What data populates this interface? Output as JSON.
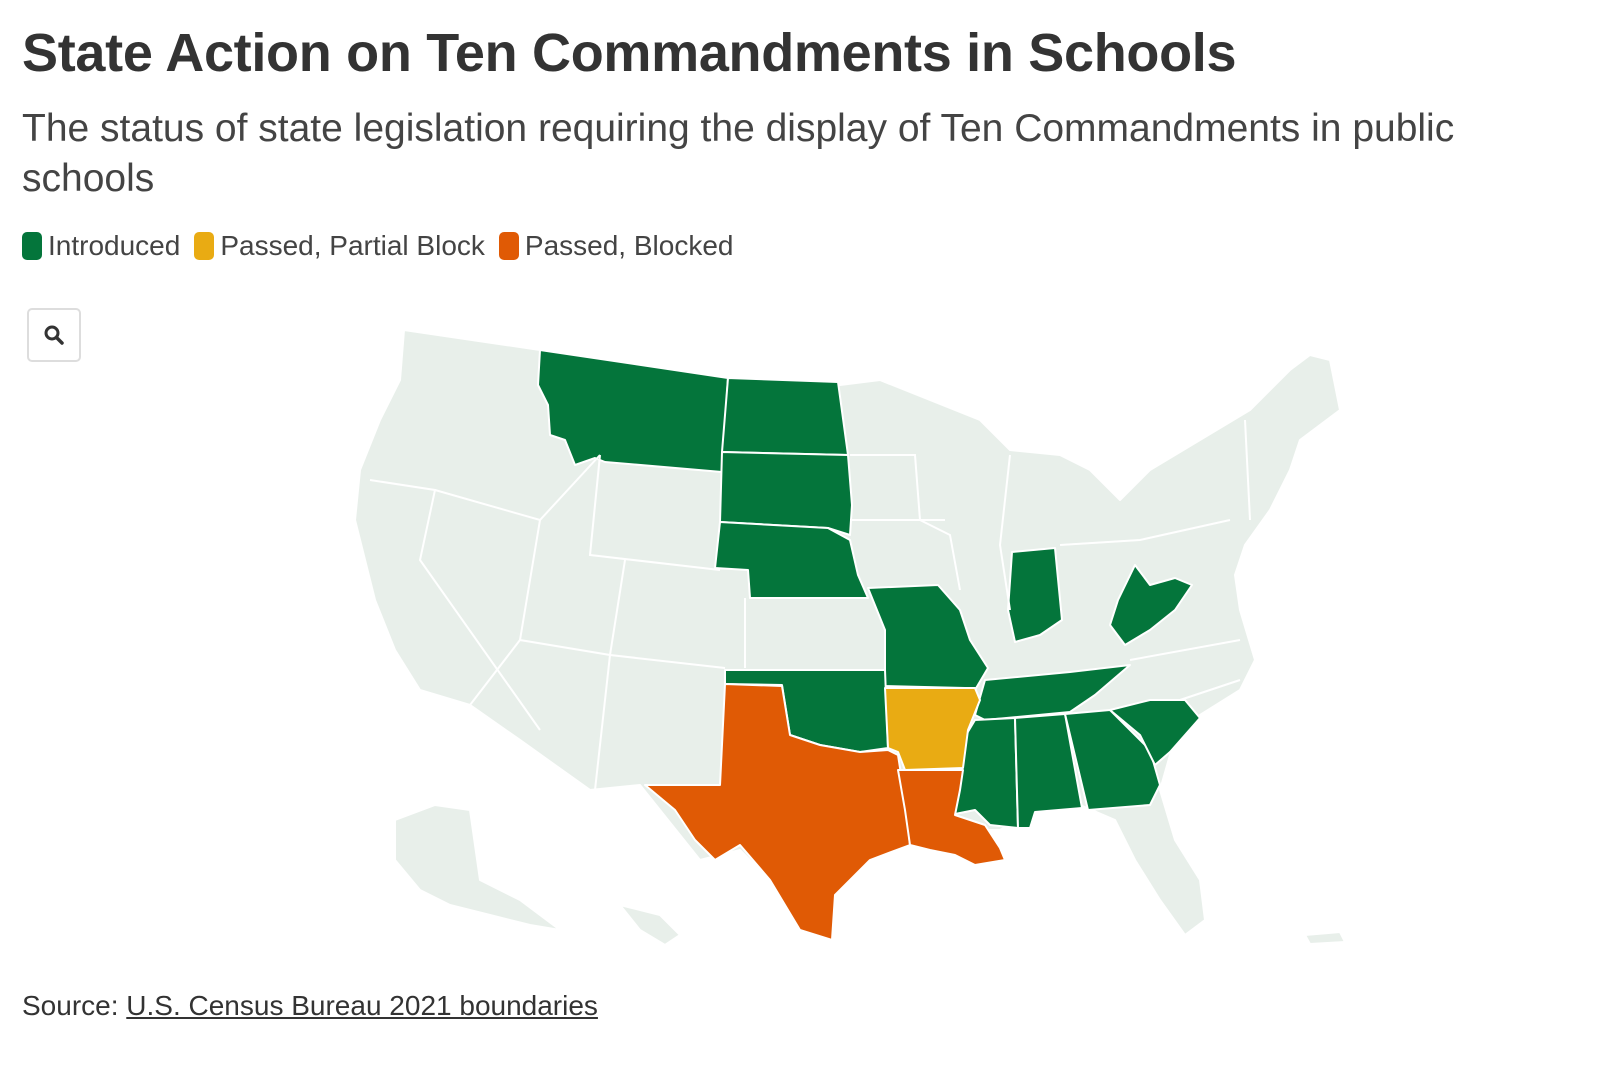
{
  "title": "State Action on Ten Commandments in Schools",
  "subtitle": "The status of state legislation requiring the display of Ten Commandments in public schools",
  "legend": [
    {
      "label": "Introduced",
      "color": "#04753b"
    },
    {
      "label": "Passed, Partial Block",
      "color": "#e9ab13"
    },
    {
      "label": "Passed, Blocked",
      "color": "#e05a05"
    }
  ],
  "map": {
    "base_color": "#e8efea",
    "border_color": "#ffffff",
    "zoom_icon": "search-icon",
    "states_introduced": [
      "Montana",
      "North Dakota",
      "South Dakota",
      "Nebraska",
      "Missouri",
      "Oklahoma",
      "Indiana",
      "West Virginia",
      "Tennessee",
      "Mississippi",
      "Alabama",
      "Georgia",
      "South Carolina"
    ],
    "states_partial_block": [
      "Arkansas"
    ],
    "states_blocked": [
      "Texas",
      "Louisiana"
    ]
  },
  "source": {
    "prefix": "Source: ",
    "link_text": "U.S. Census Bureau 2021 boundaries"
  }
}
